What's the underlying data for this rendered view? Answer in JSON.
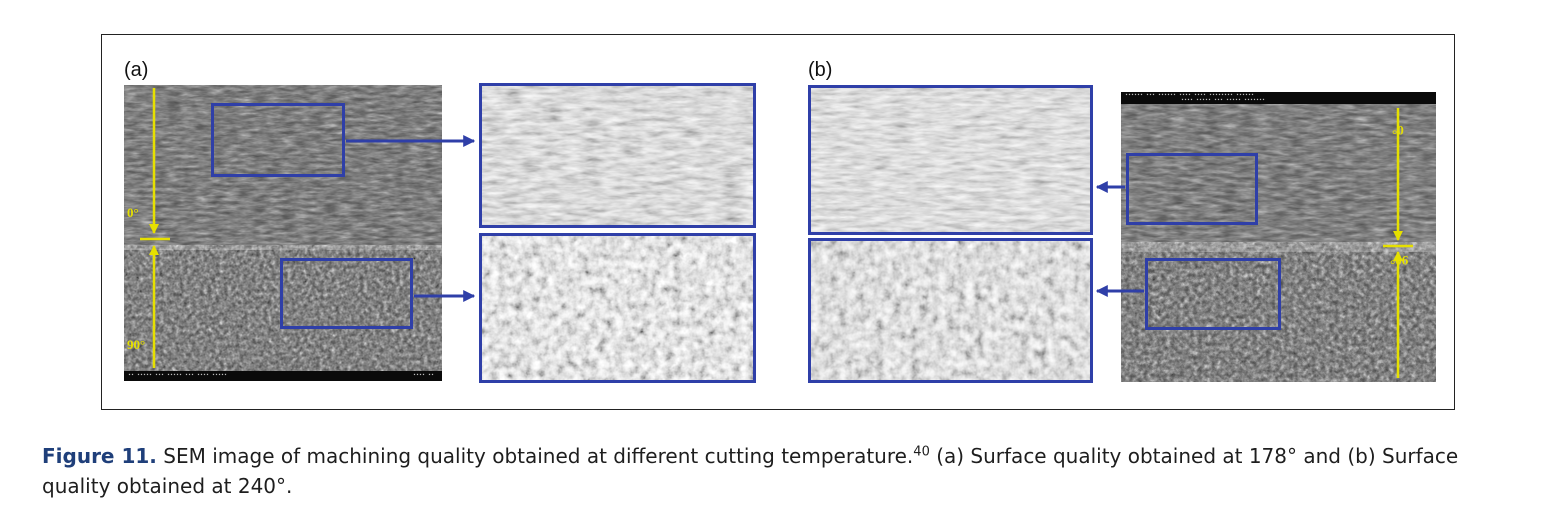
{
  "figure": {
    "panel_a": {
      "label": "(a)",
      "angle_top": "0°",
      "angle_bottom": "90°"
    },
    "panel_b": {
      "label": "(b)",
      "angle_top": "0°",
      "angle_bottom": "90°"
    }
  },
  "caption": {
    "label": "Figure 11.",
    "text_1": "SEM image of machining quality obtained at different cutting temperature.",
    "ref": "40",
    "text_2": "(a) Surface quality obtained at 178",
    "text_3": "and (b) Surface quality obtained at 240",
    "degree": "°",
    "end": "."
  },
  "colors": {
    "box_blue": "#2f3fa8",
    "marker_yellow": "#e6e000",
    "caption_label": "#1f3f7a"
  }
}
